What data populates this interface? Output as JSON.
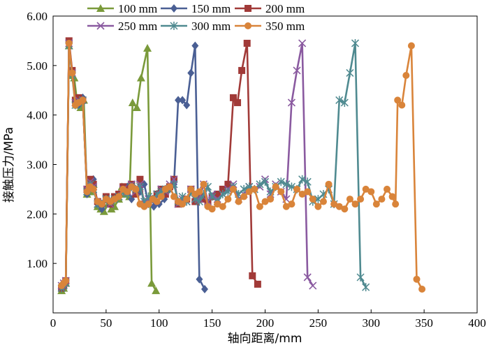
{
  "chart_data": {
    "type": "line",
    "xlabel": "轴向距离/mm",
    "ylabel": "接触压力/MPa",
    "xlim": [
      0,
      400
    ],
    "ylim": [
      0,
      6
    ],
    "xticks": [
      "0",
      "50",
      "100",
      "150",
      "200",
      "250",
      "300",
      "350",
      "400"
    ],
    "yticks": [
      "1.00",
      "2.00",
      "3.00",
      "4.00",
      "5.00",
      "6.00"
    ],
    "legend_position": "top",
    "series": [
      {
        "name": "100 mm",
        "color": "#7a9a3a",
        "marker": "triangle",
        "points": [
          [
            8,
            0.45
          ],
          [
            10,
            0.5
          ],
          [
            12,
            0.6
          ],
          [
            15,
            5.4
          ],
          [
            18,
            4.8
          ],
          [
            20,
            4.75
          ],
          [
            23,
            4.2
          ],
          [
            26,
            4.15
          ],
          [
            29,
            4.3
          ],
          [
            32,
            2.4
          ],
          [
            35,
            2.45
          ],
          [
            38,
            2.6
          ],
          [
            42,
            2.15
          ],
          [
            45,
            2.1
          ],
          [
            48,
            2.05
          ],
          [
            52,
            2.2
          ],
          [
            55,
            2.1
          ],
          [
            58,
            2.15
          ],
          [
            62,
            2.3
          ],
          [
            65,
            2.55
          ],
          [
            68,
            2.4
          ],
          [
            72,
            2.35
          ],
          [
            75,
            4.25
          ],
          [
            79,
            4.15
          ],
          [
            83,
            4.75
          ],
          [
            89,
            5.35
          ],
          [
            93,
            0.6
          ],
          [
            97,
            0.45
          ]
        ]
      },
      {
        "name": "150 mm",
        "color": "#4a5f94",
        "marker": "diamond",
        "points": [
          [
            8,
            0.5
          ],
          [
            10,
            0.55
          ],
          [
            12,
            0.65
          ],
          [
            15,
            5.45
          ],
          [
            18,
            4.85
          ],
          [
            21,
            4.3
          ],
          [
            24,
            4.2
          ],
          [
            28,
            4.35
          ],
          [
            32,
            2.4
          ],
          [
            35,
            2.6
          ],
          [
            38,
            2.7
          ],
          [
            42,
            2.2
          ],
          [
            46,
            2.1
          ],
          [
            50,
            2.3
          ],
          [
            54,
            2.2
          ],
          [
            58,
            2.3
          ],
          [
            62,
            2.4
          ],
          [
            66,
            2.5
          ],
          [
            70,
            2.55
          ],
          [
            74,
            2.3
          ],
          [
            78,
            2.5
          ],
          [
            82,
            2.45
          ],
          [
            86,
            2.6
          ],
          [
            90,
            2.2
          ],
          [
            95,
            2.15
          ],
          [
            100,
            2.2
          ],
          [
            105,
            2.3
          ],
          [
            110,
            2.5
          ],
          [
            114,
            2.6
          ],
          [
            118,
            4.3
          ],
          [
            122,
            4.3
          ],
          [
            126,
            4.2
          ],
          [
            130,
            4.85
          ],
          [
            134,
            5.4
          ],
          [
            138,
            0.68
          ],
          [
            143,
            0.48
          ]
        ]
      },
      {
        "name": "200 mm",
        "color": "#a13a38",
        "marker": "square",
        "points": [
          [
            8,
            0.5
          ],
          [
            10,
            0.55
          ],
          [
            12,
            0.65
          ],
          [
            15,
            5.5
          ],
          [
            18,
            4.9
          ],
          [
            21,
            4.3
          ],
          [
            24,
            4.35
          ],
          [
            28,
            4.3
          ],
          [
            32,
            2.5
          ],
          [
            35,
            2.7
          ],
          [
            38,
            2.6
          ],
          [
            42,
            2.25
          ],
          [
            46,
            2.2
          ],
          [
            50,
            2.35
          ],
          [
            54,
            2.2
          ],
          [
            58,
            2.35
          ],
          [
            62,
            2.4
          ],
          [
            66,
            2.55
          ],
          [
            70,
            2.5
          ],
          [
            74,
            2.6
          ],
          [
            78,
            2.4
          ],
          [
            82,
            2.7
          ],
          [
            86,
            2.2
          ],
          [
            90,
            2.25
          ],
          [
            94,
            2.3
          ],
          [
            98,
            2.4
          ],
          [
            102,
            2.5
          ],
          [
            106,
            2.4
          ],
          [
            110,
            2.55
          ],
          [
            114,
            2.7
          ],
          [
            118,
            2.2
          ],
          [
            122,
            2.25
          ],
          [
            126,
            2.3
          ],
          [
            130,
            2.5
          ],
          [
            134,
            2.25
          ],
          [
            138,
            2.35
          ],
          [
            142,
            2.3
          ],
          [
            146,
            2.2
          ],
          [
            150,
            2.35
          ],
          [
            155,
            2.4
          ],
          [
            160,
            2.5
          ],
          [
            165,
            2.6
          ],
          [
            170,
            4.35
          ],
          [
            174,
            4.25
          ],
          [
            178,
            4.9
          ],
          [
            183,
            5.45
          ],
          [
            188,
            0.75
          ],
          [
            193,
            0.58
          ]
        ]
      },
      {
        "name": "250 mm",
        "color": "#8a5aa0",
        "marker": "x",
        "points": [
          [
            8,
            0.55
          ],
          [
            10,
            0.6
          ],
          [
            12,
            0.65
          ],
          [
            15,
            5.45
          ],
          [
            18,
            4.85
          ],
          [
            21,
            4.25
          ],
          [
            24,
            4.3
          ],
          [
            28,
            4.3
          ],
          [
            32,
            2.5
          ],
          [
            35,
            2.65
          ],
          [
            38,
            2.55
          ],
          [
            42,
            2.2
          ],
          [
            46,
            2.25
          ],
          [
            50,
            2.3
          ],
          [
            54,
            2.2
          ],
          [
            58,
            2.3
          ],
          [
            62,
            2.35
          ],
          [
            66,
            2.5
          ],
          [
            70,
            2.45
          ],
          [
            74,
            2.6
          ],
          [
            78,
            2.45
          ],
          [
            82,
            2.6
          ],
          [
            86,
            2.2
          ],
          [
            90,
            2.3
          ],
          [
            94,
            2.25
          ],
          [
            98,
            2.4
          ],
          [
            102,
            2.5
          ],
          [
            106,
            2.45
          ],
          [
            110,
            2.6
          ],
          [
            114,
            2.7
          ],
          [
            118,
            2.2
          ],
          [
            122,
            2.3
          ],
          [
            126,
            2.25
          ],
          [
            130,
            2.5
          ],
          [
            134,
            2.3
          ],
          [
            138,
            2.3
          ],
          [
            142,
            2.6
          ],
          [
            146,
            2.25
          ],
          [
            150,
            2.4
          ],
          [
            155,
            2.3
          ],
          [
            160,
            2.4
          ],
          [
            165,
            2.5
          ],
          [
            170,
            2.6
          ],
          [
            175,
            2.3
          ],
          [
            180,
            2.4
          ],
          [
            185,
            2.55
          ],
          [
            190,
            2.5
          ],
          [
            195,
            2.55
          ],
          [
            200,
            2.7
          ],
          [
            205,
            2.4
          ],
          [
            210,
            2.6
          ],
          [
            215,
            2.45
          ],
          [
            220,
            2.3
          ],
          [
            225,
            4.25
          ],
          [
            230,
            4.9
          ],
          [
            235,
            5.45
          ],
          [
            240,
            0.72
          ],
          [
            245,
            0.55
          ]
        ]
      },
      {
        "name": "300 mm",
        "color": "#4f8a90",
        "marker": "asterisk",
        "points": [
          [
            8,
            0.5
          ],
          [
            10,
            0.55
          ],
          [
            12,
            0.6
          ],
          [
            15,
            5.4
          ],
          [
            18,
            4.8
          ],
          [
            21,
            4.2
          ],
          [
            24,
            4.25
          ],
          [
            28,
            4.3
          ],
          [
            32,
            2.45
          ],
          [
            35,
            2.6
          ],
          [
            38,
            2.5
          ],
          [
            42,
            2.2
          ],
          [
            46,
            2.2
          ],
          [
            50,
            2.3
          ],
          [
            54,
            2.25
          ],
          [
            58,
            2.3
          ],
          [
            62,
            2.35
          ],
          [
            66,
            2.45
          ],
          [
            70,
            2.4
          ],
          [
            74,
            2.55
          ],
          [
            78,
            2.5
          ],
          [
            82,
            2.55
          ],
          [
            86,
            2.25
          ],
          [
            90,
            2.35
          ],
          [
            94,
            2.3
          ],
          [
            98,
            2.4
          ],
          [
            102,
            2.45
          ],
          [
            106,
            2.5
          ],
          [
            110,
            2.5
          ],
          [
            114,
            2.6
          ],
          [
            118,
            2.25
          ],
          [
            122,
            2.35
          ],
          [
            126,
            2.25
          ],
          [
            130,
            2.45
          ],
          [
            134,
            2.3
          ],
          [
            138,
            2.25
          ],
          [
            142,
            2.4
          ],
          [
            146,
            2.55
          ],
          [
            150,
            2.35
          ],
          [
            155,
            2.25
          ],
          [
            160,
            2.4
          ],
          [
            165,
            2.45
          ],
          [
            170,
            2.55
          ],
          [
            175,
            2.4
          ],
          [
            180,
            2.5
          ],
          [
            185,
            2.55
          ],
          [
            190,
            2.5
          ],
          [
            195,
            2.6
          ],
          [
            200,
            2.65
          ],
          [
            205,
            2.45
          ],
          [
            210,
            2.55
          ],
          [
            215,
            2.65
          ],
          [
            220,
            2.6
          ],
          [
            225,
            2.55
          ],
          [
            230,
            2.5
          ],
          [
            235,
            2.7
          ],
          [
            240,
            2.65
          ],
          [
            245,
            2.25
          ],
          [
            250,
            2.3
          ],
          [
            255,
            2.4
          ],
          [
            260,
            2.5
          ],
          [
            265,
            2.2
          ],
          [
            270,
            4.3
          ],
          [
            275,
            4.25
          ],
          [
            280,
            4.85
          ],
          [
            285,
            5.45
          ],
          [
            290,
            0.72
          ],
          [
            295,
            0.52
          ]
        ]
      },
      {
        "name": "350 mm",
        "color": "#d9843a",
        "marker": "circle",
        "points": [
          [
            8,
            0.55
          ],
          [
            10,
            0.6
          ],
          [
            12,
            0.65
          ],
          [
            15,
            5.45
          ],
          [
            18,
            4.85
          ],
          [
            21,
            4.2
          ],
          [
            24,
            4.25
          ],
          [
            28,
            4.3
          ],
          [
            32,
            2.45
          ],
          [
            35,
            2.55
          ],
          [
            38,
            2.5
          ],
          [
            42,
            2.25
          ],
          [
            46,
            2.2
          ],
          [
            50,
            2.3
          ],
          [
            54,
            2.25
          ],
          [
            58,
            2.3
          ],
          [
            62,
            2.35
          ],
          [
            66,
            2.5
          ],
          [
            70,
            2.45
          ],
          [
            74,
            2.55
          ],
          [
            78,
            2.5
          ],
          [
            82,
            2.2
          ],
          [
            86,
            2.15
          ],
          [
            90,
            2.2
          ],
          [
            94,
            2.3
          ],
          [
            98,
            2.25
          ],
          [
            102,
            2.35
          ],
          [
            106,
            2.5
          ],
          [
            110,
            2.55
          ],
          [
            114,
            2.35
          ],
          [
            118,
            2.25
          ],
          [
            122,
            2.2
          ],
          [
            126,
            2.3
          ],
          [
            130,
            2.5
          ],
          [
            134,
            2.4
          ],
          [
            138,
            2.45
          ],
          [
            142,
            2.6
          ],
          [
            146,
            2.15
          ],
          [
            150,
            2.1
          ],
          [
            155,
            2.2
          ],
          [
            160,
            2.15
          ],
          [
            165,
            2.3
          ],
          [
            170,
            2.5
          ],
          [
            175,
            2.25
          ],
          [
            180,
            2.35
          ],
          [
            185,
            2.45
          ],
          [
            190,
            2.5
          ],
          [
            195,
            2.15
          ],
          [
            200,
            2.25
          ],
          [
            205,
            2.3
          ],
          [
            210,
            2.55
          ],
          [
            215,
            2.45
          ],
          [
            220,
            2.15
          ],
          [
            225,
            2.2
          ],
          [
            230,
            2.5
          ],
          [
            235,
            2.4
          ],
          [
            240,
            2.45
          ],
          [
            245,
            2.3
          ],
          [
            250,
            2.15
          ],
          [
            255,
            2.25
          ],
          [
            260,
            2.6
          ],
          [
            265,
            2.2
          ],
          [
            270,
            2.15
          ],
          [
            275,
            2.1
          ],
          [
            280,
            2.3
          ],
          [
            285,
            2.2
          ],
          [
            290,
            2.3
          ],
          [
            295,
            2.5
          ],
          [
            300,
            2.45
          ],
          [
            305,
            2.2
          ],
          [
            310,
            2.3
          ],
          [
            315,
            2.5
          ],
          [
            320,
            2.35
          ],
          [
            323,
            2.2
          ],
          [
            325,
            4.3
          ],
          [
            329,
            4.2
          ],
          [
            333,
            4.8
          ],
          [
            338,
            5.4
          ],
          [
            343,
            0.68
          ],
          [
            348,
            0.48
          ]
        ]
      }
    ]
  }
}
